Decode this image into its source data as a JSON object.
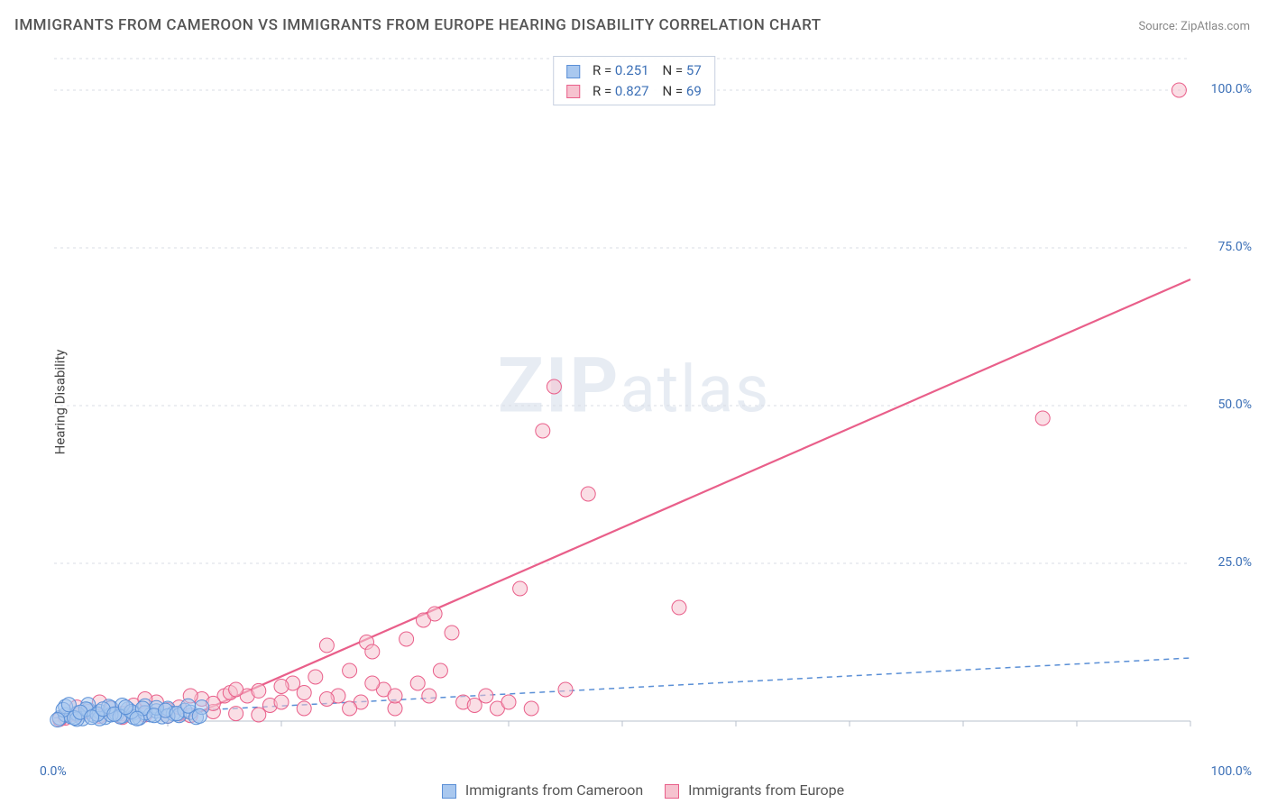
{
  "title": "IMMIGRANTS FROM CAMEROON VS IMMIGRANTS FROM EUROPE HEARING DISABILITY CORRELATION CHART",
  "source": "Source: ZipAtlas.com",
  "y_axis_label": "Hearing Disability",
  "watermark_bold": "ZIP",
  "watermark_rest": "atlas",
  "type": "scatter",
  "xlim": [
    0,
    100
  ],
  "ylim": [
    0,
    105
  ],
  "x_tick_labels": {
    "0": "0.0%",
    "100": "100.0%"
  },
  "y_tick_labels": {
    "25": "25.0%",
    "50": "50.0%",
    "75": "75.0%",
    "100": "100.0%"
  },
  "grid_color": "#d8dde4",
  "grid_dash": "3,4",
  "axis_color": "#b8c0cc",
  "plot_background": "#ffffff",
  "marker_radius": 8,
  "marker_opacity": 0.55,
  "line_width": 2,
  "series": {
    "cameroon": {
      "label": "Immigrants from Cameroon",
      "fill": "#a9c8ef",
      "stroke": "#5a8fd6",
      "R": "0.251",
      "N": "57",
      "trend": {
        "x1": 0,
        "y1": 0.5,
        "x2": 100,
        "y2": 10.0,
        "dash": "6,5",
        "width": 1.5
      },
      "points": [
        [
          0.5,
          0.5
        ],
        [
          1,
          1
        ],
        [
          1.5,
          0.7
        ],
        [
          2,
          1.2
        ],
        [
          2.5,
          0.4
        ],
        [
          3,
          1.8
        ],
        [
          3.5,
          0.9
        ],
        [
          4,
          1.5
        ],
        [
          4.5,
          0.6
        ],
        [
          5,
          2.1
        ],
        [
          5.5,
          1.1
        ],
        [
          6,
          0.8
        ],
        [
          6.5,
          1.9
        ],
        [
          7,
          1.3
        ],
        [
          7.5,
          0.5
        ],
        [
          8,
          2.4
        ],
        [
          8.5,
          1.0
        ],
        [
          9,
          1.6
        ],
        [
          9.5,
          0.7
        ],
        [
          10,
          2.0
        ],
        [
          10.5,
          1.2
        ],
        [
          11,
          0.9
        ],
        [
          11.5,
          1.7
        ],
        [
          12,
          1.4
        ],
        [
          12.5,
          0.6
        ],
        [
          13,
          2.2
        ],
        [
          1,
          2.3
        ],
        [
          2,
          0.3
        ],
        [
          3,
          2.6
        ],
        [
          4,
          0.4
        ],
        [
          5,
          1.0
        ],
        [
          6,
          2.5
        ],
        [
          7,
          0.6
        ],
        [
          8,
          1.3
        ],
        [
          9,
          2.1
        ],
        [
          10,
          0.8
        ],
        [
          0.8,
          1.8
        ],
        [
          1.8,
          0.5
        ],
        [
          2.8,
          1.9
        ],
        [
          3.8,
          1.1
        ],
        [
          4.8,
          2.3
        ],
        [
          5.8,
          0.7
        ],
        [
          6.8,
          1.5
        ],
        [
          7.8,
          2.0
        ],
        [
          8.8,
          0.9
        ],
        [
          9.8,
          1.7
        ],
        [
          10.8,
          1.2
        ],
        [
          11.8,
          2.4
        ],
        [
          12.8,
          0.8
        ],
        [
          0.3,
          0.2
        ],
        [
          1.3,
          2.6
        ],
        [
          2.3,
          1.4
        ],
        [
          3.3,
          0.6
        ],
        [
          4.3,
          1.9
        ],
        [
          5.3,
          1.1
        ],
        [
          6.3,
          2.2
        ],
        [
          7.3,
          0.4
        ]
      ]
    },
    "europe": {
      "label": "Immigrants from Europe",
      "fill": "#f6c2cf",
      "stroke": "#e95f8a",
      "R": "0.827",
      "N": "69",
      "trend": {
        "x1": 11,
        "y1": 0,
        "x2": 100,
        "y2": 70,
        "dash": "",
        "width": 2.2
      },
      "points": [
        [
          1,
          0.5
        ],
        [
          2,
          1
        ],
        [
          3,
          1.5
        ],
        [
          4,
          0.8
        ],
        [
          5,
          2
        ],
        [
          6,
          1.2
        ],
        [
          7,
          2.5
        ],
        [
          8,
          1
        ],
        [
          9,
          3
        ],
        [
          10,
          1.8
        ],
        [
          11,
          2.2
        ],
        [
          12,
          0.9
        ],
        [
          13,
          3.5
        ],
        [
          14,
          1.5
        ],
        [
          15,
          4
        ],
        [
          15.5,
          4.5
        ],
        [
          16,
          1.2
        ],
        [
          17,
          4
        ],
        [
          18,
          4.8
        ],
        [
          19,
          2.5
        ],
        [
          20,
          3
        ],
        [
          21,
          6
        ],
        [
          22,
          2
        ],
        [
          23,
          7
        ],
        [
          24,
          12
        ],
        [
          25,
          4
        ],
        [
          26,
          8
        ],
        [
          27,
          3
        ],
        [
          27.5,
          12.5
        ],
        [
          28,
          11
        ],
        [
          29,
          5
        ],
        [
          30,
          2
        ],
        [
          31,
          13
        ],
        [
          32,
          6
        ],
        [
          32.5,
          16
        ],
        [
          33,
          4
        ],
        [
          33.5,
          17
        ],
        [
          34,
          8
        ],
        [
          35,
          14
        ],
        [
          36,
          3
        ],
        [
          37,
          2.5
        ],
        [
          38,
          4
        ],
        [
          39,
          2
        ],
        [
          40,
          3
        ],
        [
          41,
          21
        ],
        [
          42,
          2
        ],
        [
          43,
          46
        ],
        [
          44,
          53
        ],
        [
          45,
          5
        ],
        [
          47,
          36
        ],
        [
          55,
          18
        ],
        [
          2,
          2.2
        ],
        [
          4,
          3
        ],
        [
          6,
          0.6
        ],
        [
          8,
          3.5
        ],
        [
          10,
          0.8
        ],
        [
          12,
          4
        ],
        [
          14,
          2.8
        ],
        [
          16,
          5
        ],
        [
          18,
          1
        ],
        [
          20,
          5.5
        ],
        [
          22,
          4.5
        ],
        [
          24,
          3.5
        ],
        [
          26,
          2
        ],
        [
          28,
          6
        ],
        [
          30,
          4
        ],
        [
          87,
          48
        ],
        [
          99,
          100
        ],
        [
          0.5,
          0.3
        ]
      ]
    }
  },
  "stats_legend_labels": {
    "R": "R",
    "N": "N",
    "eq": "="
  }
}
